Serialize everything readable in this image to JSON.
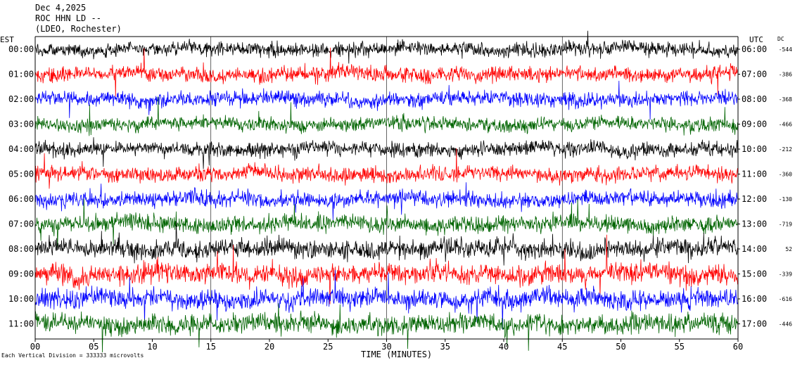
{
  "header": {
    "date": "Dec 4,2025",
    "station": "ROC HHN LD --",
    "network": "(LDEO, Rochester)"
  },
  "labels": {
    "left_timezone": "EST",
    "right_timezone": "UTC",
    "dc_heading": "DC",
    "x_axis_title": "TIME (MINUTES)",
    "footnote": "Each Vertical Division = 333333 microvolts"
  },
  "colors": {
    "cycle": [
      "#000000",
      "#ff0000",
      "#0000ff",
      "#006400"
    ],
    "marker": "#8b0000",
    "grid": "#000000"
  },
  "chart_data": {
    "type": "line",
    "title": "Dec 4,2025",
    "xlabel": "TIME (MINUTES)",
    "xlim": [
      0,
      60
    ],
    "x_ticks": [
      "00",
      "05",
      "10",
      "15",
      "20",
      "25",
      "30",
      "35",
      "40",
      "45",
      "50",
      "55",
      "60"
    ],
    "vertical_grid_minutes": [
      15,
      30,
      45
    ],
    "series": [
      {
        "est": "00:00",
        "utc": "06:00",
        "dc": "-544",
        "color": "#000000",
        "noise_level": 0.45
      },
      {
        "est": "01:00",
        "utc": "07:00",
        "dc": "-386",
        "color": "#ff0000",
        "noise_level": 0.5
      },
      {
        "est": "02:00",
        "utc": "08:00",
        "dc": "-368",
        "color": "#0000ff",
        "noise_level": 0.5
      },
      {
        "est": "03:00",
        "utc": "09:00",
        "dc": "-466",
        "color": "#006400",
        "noise_level": 0.45
      },
      {
        "est": "04:00",
        "utc": "10:00",
        "dc": "-212",
        "color": "#000000",
        "noise_level": 0.45
      },
      {
        "est": "05:00",
        "utc": "11:00",
        "dc": "-360",
        "color": "#ff0000",
        "noise_level": 0.5
      },
      {
        "est": "06:00",
        "utc": "12:00",
        "dc": "-130",
        "color": "#0000ff",
        "noise_level": 0.55
      },
      {
        "est": "07:00",
        "utc": "13:00",
        "dc": "-719",
        "color": "#006400",
        "noise_level": 0.6
      },
      {
        "est": "08:00",
        "utc": "14:00",
        "dc": "52",
        "color": "#000000",
        "noise_level": 0.75
      },
      {
        "est": "09:00",
        "utc": "15:00",
        "dc": "-339",
        "color": "#ff0000",
        "noise_level": 0.9
      },
      {
        "est": "10:00",
        "utc": "16:00",
        "dc": "-616",
        "color": "#0000ff",
        "noise_level": 0.85
      },
      {
        "est": "11:00",
        "utc": "17:00",
        "dc": "-446",
        "color": "#006400",
        "noise_level": 0.8
      }
    ],
    "grid": true
  }
}
